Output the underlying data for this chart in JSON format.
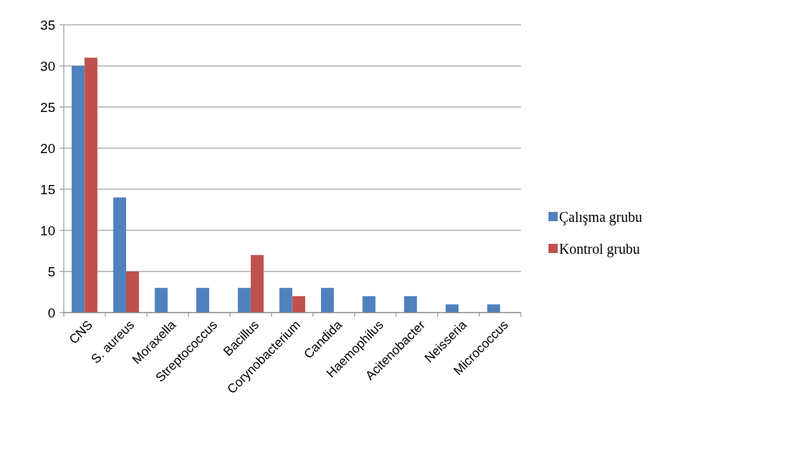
{
  "chart_data": {
    "type": "bar",
    "categories": [
      "CNS",
      "S. aureus",
      "Moraxella",
      "Streptococcus",
      "Bacillus",
      "Corynobacterium",
      "Candida",
      "Haemophilus",
      "Acitenobacter",
      "Neisseria",
      "Micrococcus"
    ],
    "series": [
      {
        "name": "Çalışma grubu",
        "color": "#4f81bd",
        "values": [
          30,
          14,
          3,
          3,
          3,
          3,
          3,
          2,
          2,
          1,
          1
        ]
      },
      {
        "name": "Kontrol grubu",
        "color": "#c0504d",
        "values": [
          31,
          5,
          0,
          0,
          7,
          2,
          0,
          0,
          0,
          0,
          0
        ]
      }
    ],
    "ylim": [
      0,
      35
    ],
    "yticks": [
      0,
      5,
      10,
      15,
      20,
      25,
      30,
      35
    ],
    "grid": "y",
    "legend": "right"
  }
}
